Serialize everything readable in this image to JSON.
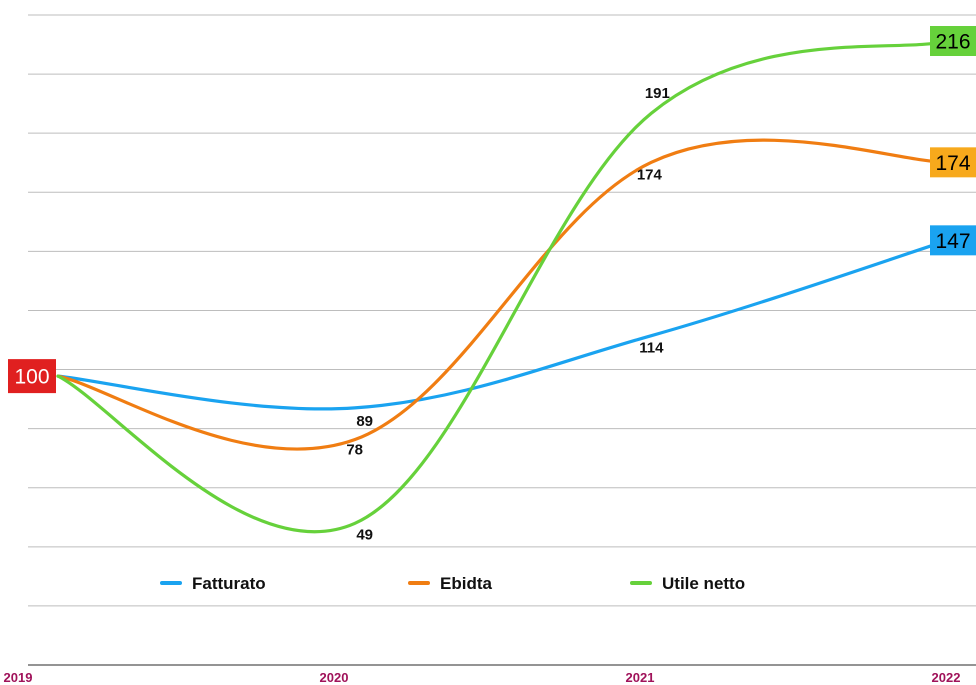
{
  "chart_data": {
    "type": "line",
    "categories": [
      "2019",
      "2020",
      "2021",
      "2022"
    ],
    "ylim": [
      0,
      225
    ],
    "grid": true,
    "legend_position": "bottom",
    "series": [
      {
        "name": "Fatturato",
        "color": "#1aa3f0",
        "values": [
          100,
          89,
          114,
          147
        ],
        "labels": [
          "",
          "89",
          "114",
          ""
        ],
        "end_label": "147",
        "end_label_bg": "#1aa3f0",
        "end_label_color": "#000000"
      },
      {
        "name": "Ebidta",
        "color": "#f07d12",
        "values": [
          100,
          78,
          174,
          174
        ],
        "labels": [
          "",
          "78",
          "174",
          ""
        ],
        "end_label": "174",
        "end_label_bg": "#f7a91c",
        "end_label_color": "#000000"
      },
      {
        "name": "Utile netto",
        "color": "#66d13b",
        "values": [
          100,
          49,
          191,
          216
        ],
        "labels": [
          "",
          "49",
          "191",
          ""
        ],
        "end_label": "216",
        "end_label_bg": "#66d13b",
        "end_label_color": "#000000"
      }
    ],
    "start_label": "100",
    "start_label_bg": "#e02020",
    "start_label_color": "#ffffff"
  }
}
